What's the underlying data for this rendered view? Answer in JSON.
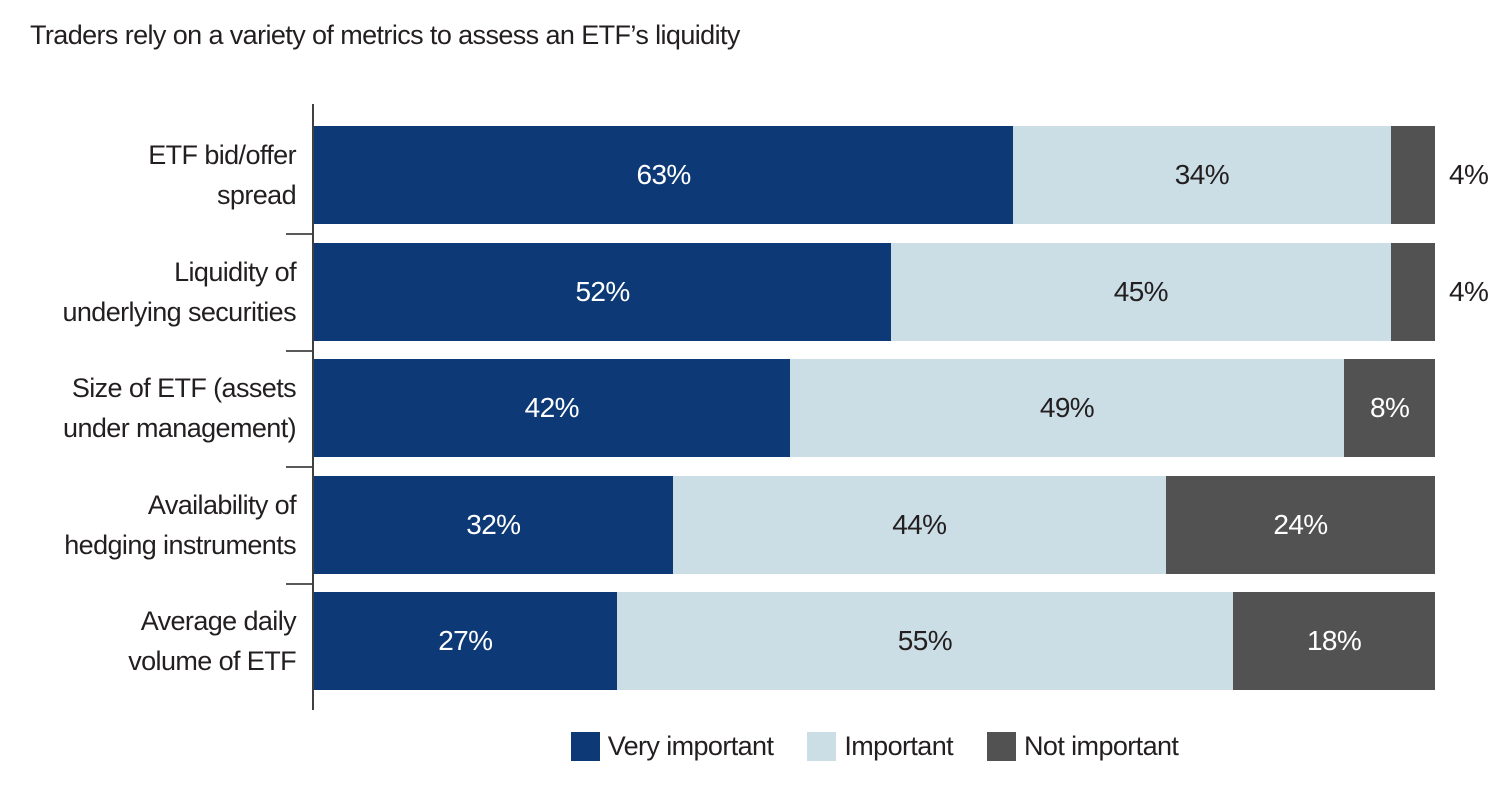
{
  "title": "Traders rely on a variety of metrics to assess an ETF’s liquidity",
  "colors": {
    "very_important": "#0d3a76",
    "important": "#cbdde5",
    "not_important": "#525252",
    "axis": "#404040",
    "tick": "#595959",
    "text": "#231f20",
    "label_on_dark": "#ffffff"
  },
  "legend": {
    "items": [
      {
        "key": "very_important",
        "label": "Very important"
      },
      {
        "key": "important",
        "label": "Important"
      },
      {
        "key": "not_important",
        "label": "Not important"
      }
    ]
  },
  "chart_data": {
    "type": "bar",
    "orientation": "horizontal",
    "stacked": true,
    "normalized_to_full_width": true,
    "title": "Traders rely on a variety of metrics to assess an ETF’s liquidity",
    "categories": [
      "ETF bid/offer spread",
      "Liquidity of underlying securities",
      "Size of ETF (assets under management)",
      "Availability of hedging instruments",
      "Average daily volume of ETF"
    ],
    "category_label_lines": [
      [
        "ETF bid/offer",
        "spread"
      ],
      [
        "Liquidity of",
        "underlying securities"
      ],
      [
        "Size of ETF (assets",
        "under management)"
      ],
      [
        "Availability of",
        "hedging instruments"
      ],
      [
        "Average daily",
        "volume of ETF"
      ]
    ],
    "series": [
      {
        "name": "Very important",
        "key": "very_important",
        "values": [
          63,
          52,
          42,
          32,
          27
        ],
        "label_color": "#ffffff"
      },
      {
        "name": "Important",
        "key": "important",
        "values": [
          34,
          45,
          49,
          44,
          55
        ],
        "label_color": "#231f20"
      },
      {
        "name": "Not important",
        "key": "not_important",
        "values": [
          4,
          4,
          8,
          24,
          18
        ],
        "label_color": "#ffffff"
      }
    ],
    "value_suffix": "%",
    "legend_position": "bottom",
    "grid": false,
    "xlim": [
      0,
      100
    ]
  }
}
